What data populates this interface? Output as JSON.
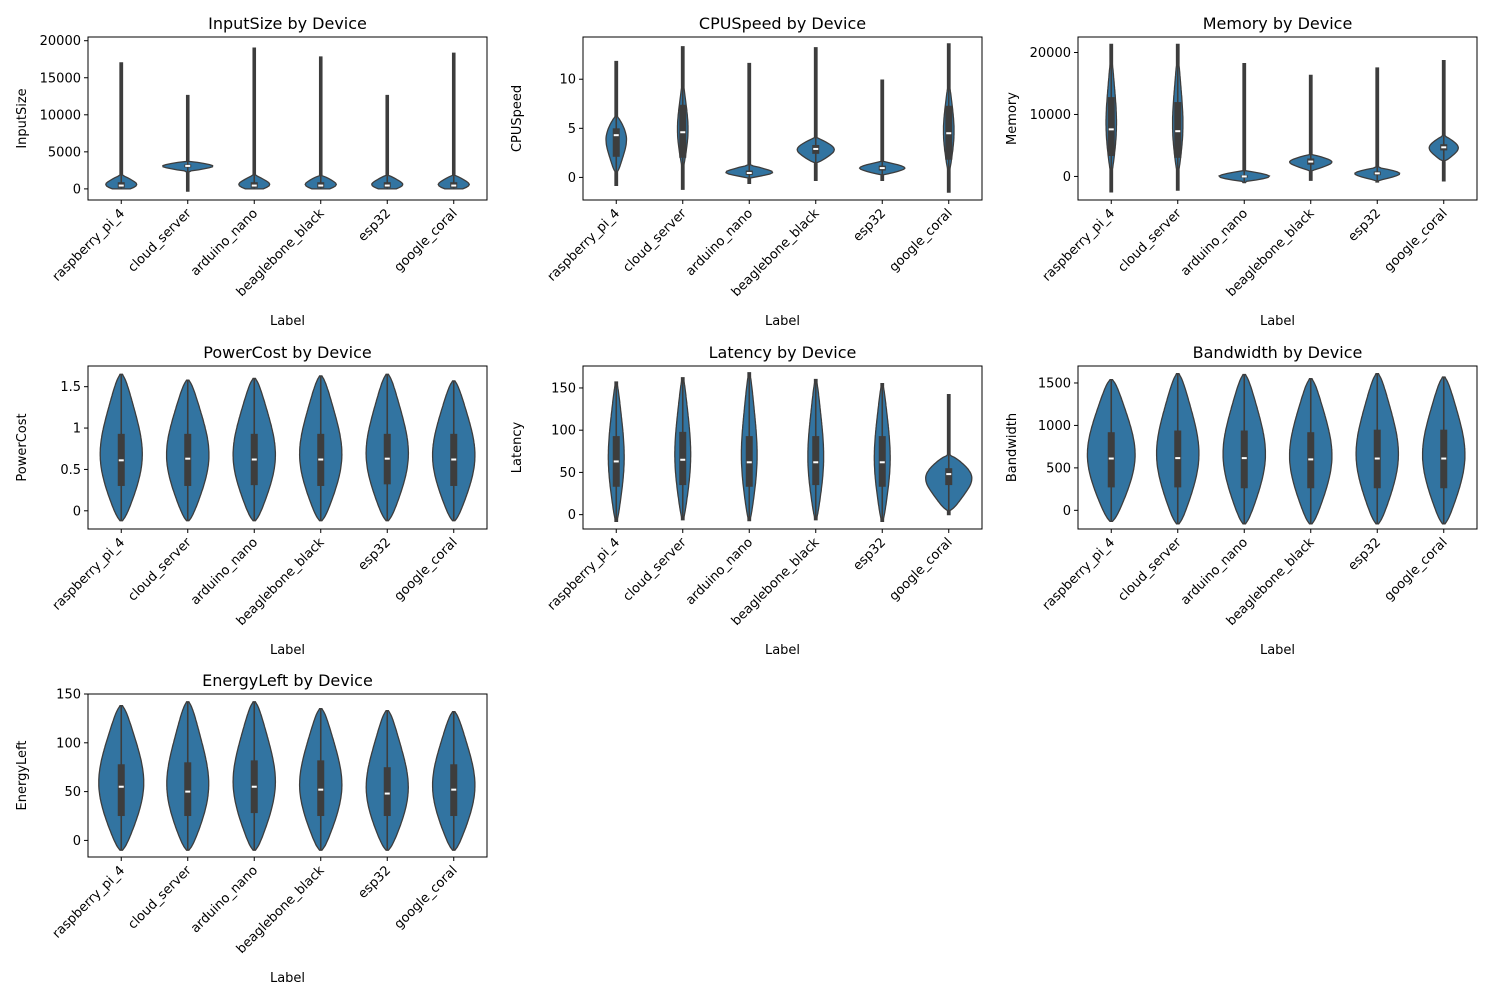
{
  "figure": {
    "background": "#ffffff",
    "violin_fill": "#3274a1",
    "violin_edge": "#3d3d3d",
    "box_color": "#3d3d3d",
    "median_color": "#ffffff"
  },
  "chart_data": [
    {
      "type": "violin",
      "title": "InputSize by Device",
      "xlabel": "Label",
      "ylabel": "InputSize",
      "categories": [
        "raspberry_pi_4",
        "cloud_server",
        "arduino_nano",
        "beaglebone_black",
        "esp32",
        "google_coral"
      ],
      "ylim": [
        -1500,
        20500
      ],
      "yticks": [
        0,
        5000,
        10000,
        15000,
        20000
      ],
      "grid": false,
      "violins": [
        {
          "min": 0,
          "max": 17000,
          "q1": 150,
          "median": 450,
          "q3": 900,
          "body_lo": -300,
          "body_hi": 1800,
          "body_width": 0.6
        },
        {
          "min": -300,
          "max": 12600,
          "q1": 2900,
          "median": 3100,
          "q3": 3300,
          "body_lo": 2400,
          "body_hi": 3700,
          "body_width": 0.95
        },
        {
          "min": 0,
          "max": 19000,
          "q1": 150,
          "median": 450,
          "q3": 900,
          "body_lo": -300,
          "body_hi": 1800,
          "body_width": 0.6
        },
        {
          "min": 0,
          "max": 17800,
          "q1": 150,
          "median": 450,
          "q3": 900,
          "body_lo": -300,
          "body_hi": 1800,
          "body_width": 0.6
        },
        {
          "min": 0,
          "max": 12600,
          "q1": 150,
          "median": 450,
          "q3": 900,
          "body_lo": -300,
          "body_hi": 1800,
          "body_width": 0.6
        },
        {
          "min": 0,
          "max": 18300,
          "q1": 150,
          "median": 450,
          "q3": 900,
          "body_lo": -300,
          "body_hi": 1800,
          "body_width": 0.6
        }
      ]
    },
    {
      "type": "violin",
      "title": "CPUSpeed by Device",
      "xlabel": "Label",
      "ylabel": "CPUSpeed",
      "categories": [
        "raspberry_pi_4",
        "cloud_server",
        "arduino_nano",
        "beaglebone_black",
        "esp32",
        "google_coral"
      ],
      "ylim": [
        -2.3,
        14.3
      ],
      "yticks": [
        0,
        5,
        10
      ],
      "grid": false,
      "violins": [
        {
          "min": -0.8,
          "max": 11.8,
          "q1": 2.1,
          "median": 4.3,
          "q3": 5.0,
          "body_lo": 0.5,
          "body_hi": 6.2,
          "body_width": 0.4
        },
        {
          "min": -1.2,
          "max": 13.3,
          "q1": 2.0,
          "median": 4.6,
          "q3": 7.4,
          "body_lo": 1.0,
          "body_hi": 9.5,
          "body_width": 0.2
        },
        {
          "min": -0.6,
          "max": 11.6,
          "q1": 0.25,
          "median": 0.45,
          "q3": 0.7,
          "body_lo": 0.0,
          "body_hi": 1.2,
          "body_width": 0.9
        },
        {
          "min": -0.3,
          "max": 13.2,
          "q1": 2.4,
          "median": 2.9,
          "q3": 3.3,
          "body_lo": 1.5,
          "body_hi": 4.0,
          "body_width": 0.7
        },
        {
          "min": -0.3,
          "max": 9.9,
          "q1": 0.7,
          "median": 0.95,
          "q3": 1.2,
          "body_lo": 0.3,
          "body_hi": 1.6,
          "body_width": 0.85
        },
        {
          "min": -1.5,
          "max": 13.6,
          "q1": 1.8,
          "median": 4.5,
          "q3": 7.3,
          "body_lo": 0.5,
          "body_hi": 9.5,
          "body_width": 0.2
        }
      ]
    },
    {
      "type": "violin",
      "title": "Memory by Device",
      "xlabel": "Label",
      "ylabel": "Memory",
      "categories": [
        "raspberry_pi_4",
        "cloud_server",
        "arduino_nano",
        "beaglebone_black",
        "esp32",
        "google_coral"
      ],
      "ylim": [
        -3800,
        22500
      ],
      "yticks": [
        0,
        10000,
        20000
      ],
      "grid": false,
      "violins": [
        {
          "min": -2500,
          "max": 21300,
          "q1": 3300,
          "median": 7600,
          "q3": 12800,
          "body_lo": 500,
          "body_hi": 19000,
          "body_width": 0.2
        },
        {
          "min": -2200,
          "max": 21300,
          "q1": 3000,
          "median": 7300,
          "q3": 12000,
          "body_lo": 500,
          "body_hi": 19000,
          "body_width": 0.2
        },
        {
          "min": -1000,
          "max": 18200,
          "q1": -200,
          "median": 0,
          "q3": 200,
          "body_lo": -800,
          "body_hi": 900,
          "body_width": 0.95
        },
        {
          "min": -600,
          "max": 16300,
          "q1": 1900,
          "median": 2400,
          "q3": 2900,
          "body_lo": 1000,
          "body_hi": 3500,
          "body_width": 0.8
        },
        {
          "min": -900,
          "max": 17500,
          "q1": 200,
          "median": 500,
          "q3": 800,
          "body_lo": -600,
          "body_hi": 1400,
          "body_width": 0.85
        },
        {
          "min": -700,
          "max": 18700,
          "q1": 4200,
          "median": 4700,
          "q3": 5200,
          "body_lo": 2500,
          "body_hi": 6500,
          "body_width": 0.55
        }
      ]
    },
    {
      "type": "violin",
      "title": "PowerCost by Device",
      "xlabel": "Label",
      "ylabel": "PowerCost",
      "categories": [
        "raspberry_pi_4",
        "cloud_server",
        "arduino_nano",
        "beaglebone_black",
        "esp32",
        "google_coral"
      ],
      "ylim": [
        -0.22,
        1.75
      ],
      "yticks": [
        0.0,
        0.5,
        1.0,
        1.5
      ],
      "grid": false,
      "violins": [
        {
          "min": -0.12,
          "max": 1.65,
          "q1": 0.3,
          "median": 0.61,
          "q3": 0.93,
          "body_lo": -0.12,
          "body_hi": 1.65,
          "body_width": 0.8
        },
        {
          "min": -0.12,
          "max": 1.58,
          "q1": 0.3,
          "median": 0.63,
          "q3": 0.93,
          "body_lo": -0.12,
          "body_hi": 1.58,
          "body_width": 0.8
        },
        {
          "min": -0.12,
          "max": 1.6,
          "q1": 0.31,
          "median": 0.62,
          "q3": 0.93,
          "body_lo": -0.12,
          "body_hi": 1.6,
          "body_width": 0.8
        },
        {
          "min": -0.12,
          "max": 1.63,
          "q1": 0.3,
          "median": 0.62,
          "q3": 0.93,
          "body_lo": -0.12,
          "body_hi": 1.63,
          "body_width": 0.8
        },
        {
          "min": -0.12,
          "max": 1.65,
          "q1": 0.32,
          "median": 0.63,
          "q3": 0.93,
          "body_lo": -0.12,
          "body_hi": 1.65,
          "body_width": 0.8
        },
        {
          "min": -0.12,
          "max": 1.57,
          "q1": 0.3,
          "median": 0.62,
          "q3": 0.93,
          "body_lo": -0.12,
          "body_hi": 1.57,
          "body_width": 0.8
        }
      ]
    },
    {
      "type": "violin",
      "title": "Latency by Device",
      "xlabel": "Label",
      "ylabel": "Latency",
      "categories": [
        "raspberry_pi_4",
        "cloud_server",
        "arduino_nano",
        "beaglebone_black",
        "esp32",
        "google_coral"
      ],
      "ylim": [
        -17,
        176
      ],
      "yticks": [
        0,
        50,
        100,
        150
      ],
      "grid": false,
      "violins": [
        {
          "min": -8,
          "max": 157,
          "q1": 33,
          "median": 63,
          "q3": 93,
          "body_lo": -8,
          "body_hi": 157,
          "body_width": 0.3
        },
        {
          "min": -6,
          "max": 162,
          "q1": 35,
          "median": 65,
          "q3": 98,
          "body_lo": -6,
          "body_hi": 162,
          "body_width": 0.3
        },
        {
          "min": -7,
          "max": 168,
          "q1": 33,
          "median": 62,
          "q3": 93,
          "body_lo": -7,
          "body_hi": 168,
          "body_width": 0.3
        },
        {
          "min": -6,
          "max": 160,
          "q1": 35,
          "median": 62,
          "q3": 93,
          "body_lo": -6,
          "body_hi": 160,
          "body_width": 0.3
        },
        {
          "min": -8,
          "max": 155,
          "q1": 33,
          "median": 62,
          "q3": 93,
          "body_lo": -8,
          "body_hi": 155,
          "body_width": 0.3
        },
        {
          "min": 0,
          "max": 142,
          "q1": 35,
          "median": 48,
          "q3": 55,
          "body_lo": 5,
          "body_hi": 70,
          "body_width": 0.9
        }
      ]
    },
    {
      "type": "violin",
      "title": "Bandwidth by Device",
      "xlabel": "Label",
      "ylabel": "Bandwidth",
      "categories": [
        "raspberry_pi_4",
        "cloud_server",
        "arduino_nano",
        "beaglebone_black",
        "esp32",
        "google_coral"
      ],
      "ylim": [
        -220,
        1700
      ],
      "yticks": [
        0,
        500,
        1000,
        1500
      ],
      "grid": false,
      "violins": [
        {
          "min": -130,
          "max": 1540,
          "q1": 270,
          "median": 610,
          "q3": 920,
          "body_lo": -130,
          "body_hi": 1540,
          "body_width": 0.9
        },
        {
          "min": -160,
          "max": 1610,
          "q1": 270,
          "median": 615,
          "q3": 940,
          "body_lo": -160,
          "body_hi": 1610,
          "body_width": 0.8
        },
        {
          "min": -160,
          "max": 1600,
          "q1": 260,
          "median": 615,
          "q3": 940,
          "body_lo": -160,
          "body_hi": 1600,
          "body_width": 0.8
        },
        {
          "min": -160,
          "max": 1550,
          "q1": 260,
          "median": 600,
          "q3": 920,
          "body_lo": -160,
          "body_hi": 1550,
          "body_width": 0.8
        },
        {
          "min": -160,
          "max": 1610,
          "q1": 260,
          "median": 610,
          "q3": 950,
          "body_lo": -160,
          "body_hi": 1610,
          "body_width": 0.8
        },
        {
          "min": -160,
          "max": 1570,
          "q1": 260,
          "median": 610,
          "q3": 950,
          "body_lo": -160,
          "body_hi": 1570,
          "body_width": 0.8
        }
      ]
    },
    {
      "type": "violin",
      "title": "EnergyLeft by Device",
      "xlabel": "Label",
      "ylabel": "EnergyLeft",
      "categories": [
        "raspberry_pi_4",
        "cloud_server",
        "arduino_nano",
        "beaglebone_black",
        "esp32",
        "google_coral"
      ],
      "ylim": [
        -17,
        150
      ],
      "yticks": [
        0,
        50,
        100,
        150
      ],
      "grid": false,
      "violins": [
        {
          "min": -10,
          "max": 138,
          "q1": 25,
          "median": 55,
          "q3": 78,
          "body_lo": -10,
          "body_hi": 138,
          "body_width": 0.85
        },
        {
          "min": -10,
          "max": 142,
          "q1": 25,
          "median": 50,
          "q3": 80,
          "body_lo": -10,
          "body_hi": 142,
          "body_width": 0.8
        },
        {
          "min": -10,
          "max": 142,
          "q1": 28,
          "median": 55,
          "q3": 82,
          "body_lo": -10,
          "body_hi": 142,
          "body_width": 0.8
        },
        {
          "min": -10,
          "max": 135,
          "q1": 25,
          "median": 52,
          "q3": 82,
          "body_lo": -10,
          "body_hi": 135,
          "body_width": 0.8
        },
        {
          "min": -10,
          "max": 133,
          "q1": 25,
          "median": 48,
          "q3": 75,
          "body_lo": -10,
          "body_hi": 133,
          "body_width": 0.8
        },
        {
          "min": -10,
          "max": 132,
          "q1": 25,
          "median": 52,
          "q3": 78,
          "body_lo": -10,
          "body_hi": 132,
          "body_width": 0.8
        }
      ]
    }
  ]
}
